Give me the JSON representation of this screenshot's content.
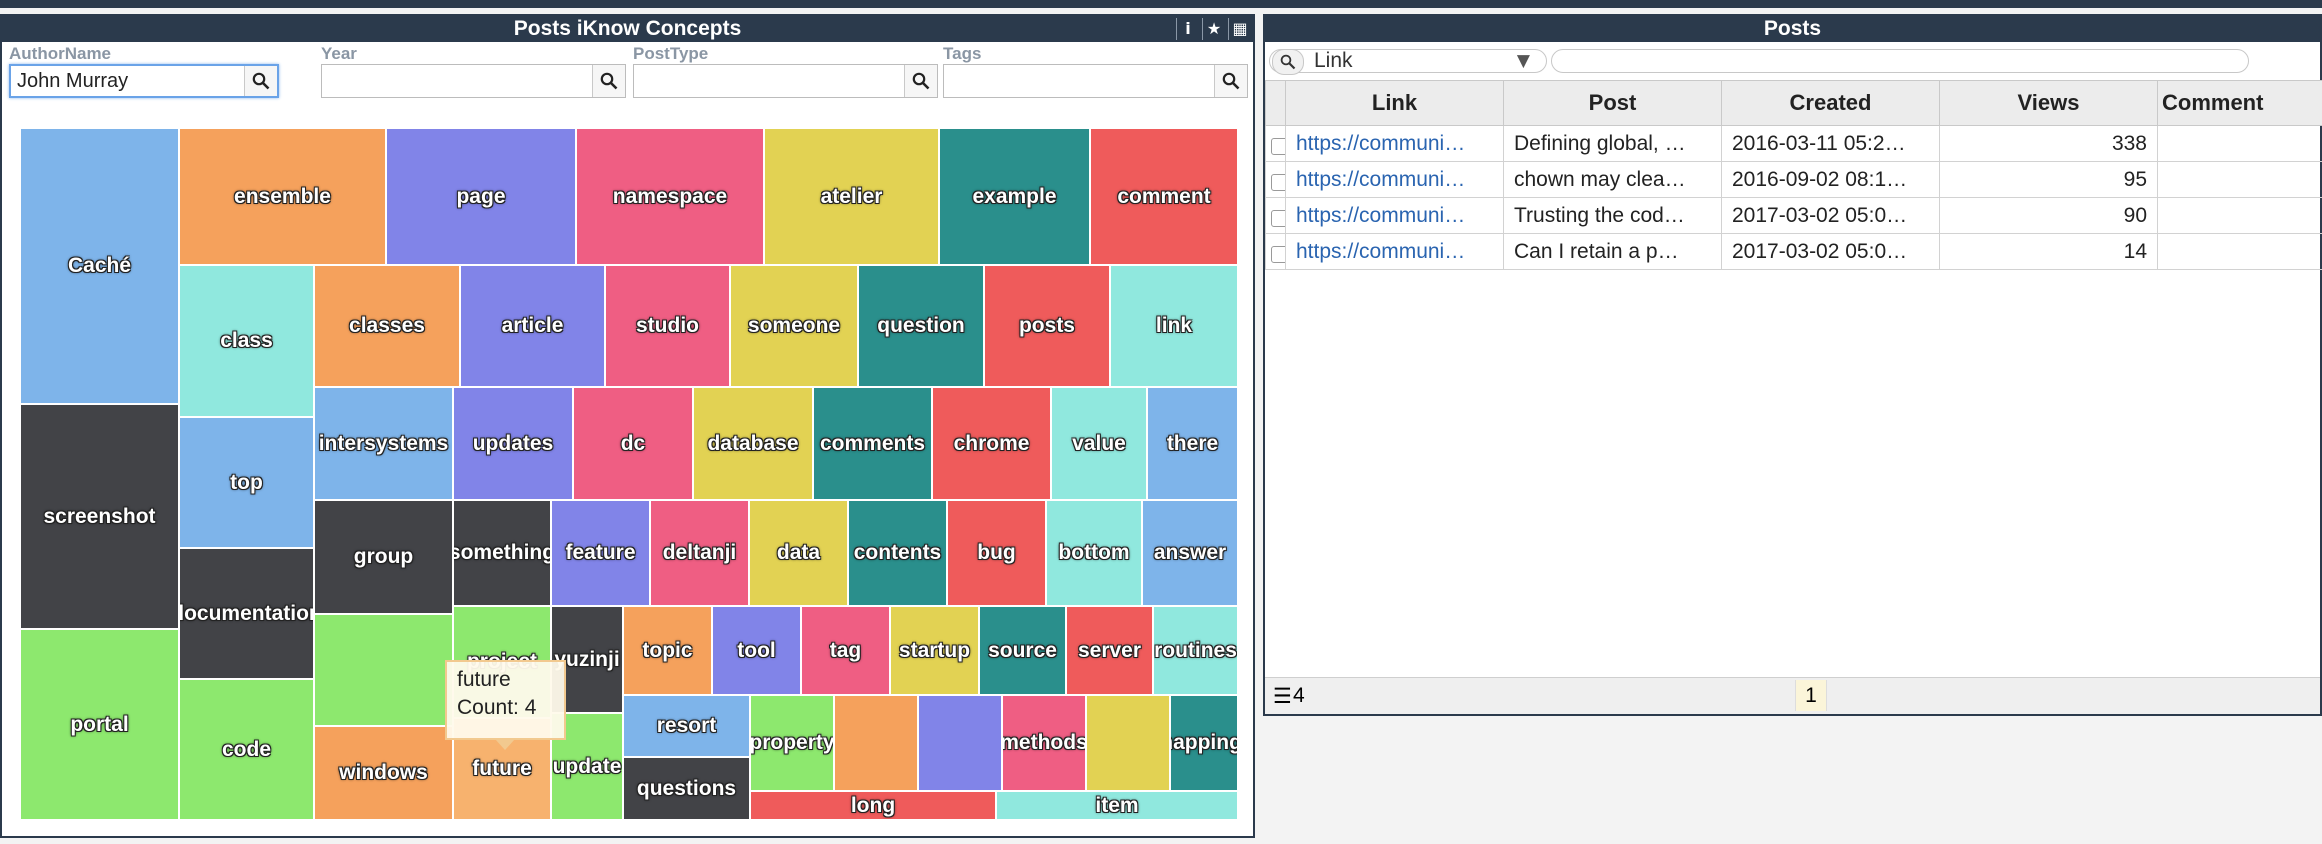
{
  "left_widget": {
    "title": "Posts iKnow Concepts",
    "header_icons": [
      {
        "name": "info-icon",
        "glyph": "i"
      },
      {
        "name": "star-icon",
        "glyph": "★"
      },
      {
        "name": "table-icon",
        "glyph": "▦"
      }
    ],
    "filters": [
      {
        "label": "AuthorName",
        "value": "John Murray",
        "placeholder": ""
      },
      {
        "label": "Year",
        "value": "",
        "placeholder": ""
      },
      {
        "label": "PostType",
        "value": "",
        "placeholder": ""
      },
      {
        "label": "Tags",
        "value": "",
        "placeholder": ""
      }
    ],
    "tooltip": {
      "concept": "future",
      "count_text": "Count: 4"
    }
  },
  "treemap": {
    "colors": {
      "blue": "#7eb4ea",
      "orange": "#f5a15c",
      "purple": "#8184e8",
      "pink": "#ef5e83",
      "yellow": "#e2d253",
      "teal": "#2a8f8c",
      "red": "#ef5b5b",
      "mint": "#90e8de",
      "dark": "#424347",
      "green": "#8de86e"
    },
    "tiles": [
      "Caché",
      "screenshot",
      "portal",
      "ensemble",
      "page",
      "namespace",
      "atelier",
      "example",
      "comment",
      "class",
      "top",
      "documentation",
      "code",
      "classes",
      "article",
      "studio",
      "someone",
      "question",
      "posts",
      "link",
      "intersystems",
      "updates",
      "dc",
      "database",
      "comments",
      "chrome",
      "value",
      "there",
      "group",
      "something",
      "feature",
      "deltanji",
      "data",
      "contents",
      "bug",
      "bottom",
      "answer",
      "project",
      "yuzinji",
      "topic",
      "tool",
      "tag",
      "startup",
      "source",
      "server",
      "routines",
      "windows",
      "future",
      "update",
      "resort",
      "property",
      "methods",
      "mappings",
      "questions",
      "long",
      "item"
    ]
  },
  "right_widget": {
    "title": "Posts",
    "column_selector": "Link",
    "search_value": "",
    "columns": [
      "Link",
      "Post",
      "Created",
      "Views",
      "Comment"
    ],
    "rows": [
      {
        "link": "https://communi…",
        "post": "Defining global, …",
        "created": "2016-03-11 05:2…",
        "views": "338",
        "comments": ""
      },
      {
        "link": "https://communi…",
        "post": "chown may clea…",
        "created": "2016-09-02 08:1…",
        "views": "95",
        "comments": ""
      },
      {
        "link": "https://communi…",
        "post": "Trusting the cod…",
        "created": "2017-03-02 05:0…",
        "views": "90",
        "comments": ""
      },
      {
        "link": "https://communi…",
        "post": "Can I retain a p…",
        "created": "2017-03-02 05:0…",
        "views": "14",
        "comments": ""
      }
    ],
    "footer": {
      "record_count": "4",
      "page": "1"
    }
  }
}
